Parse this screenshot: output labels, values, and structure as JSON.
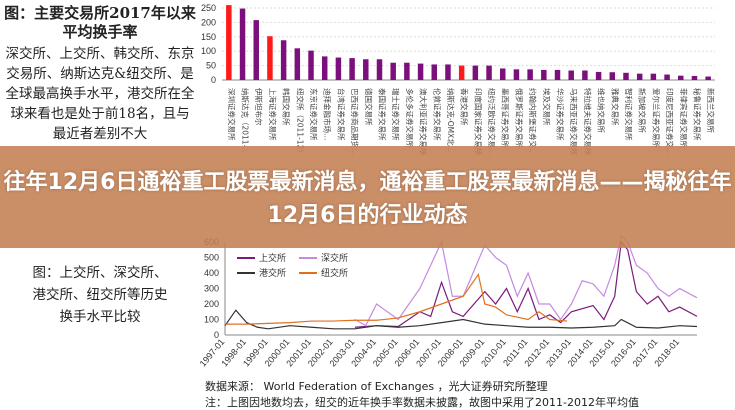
{
  "left_panel": {
    "title1": "图：主要交易所2017年以来平均换手率",
    "body1": "深交所、上交所、韩交所、东京交易所、纳斯达克&纽交所、是全球最高换手水平，港交所在全球来看也是处于前18名，且与最近者差别不大",
    "title2": "图：上交所、深交所、港交所、纽交所等历史换手水平比较"
  },
  "headline": "往年12月6日通裕重工股票最新消息，通裕重工股票最新消息——揭秘往年12月6日的行业动态",
  "source": "数据来源： World Federation of Exchanges ，光大证券研究所整理",
  "note": "注：上图因地数均去，纽交的近年换手率数据未披露，故图中采用了2011-2012年平均值",
  "colors": {
    "bar": "#7b0f7b",
    "highlight": "#ff1a1a",
    "overlay": "#c48052",
    "sse": "#7b1a7b",
    "szse": "#c58ae0",
    "hkex": "#333333",
    "nyse": "#e07020"
  },
  "chart_data": [
    {
      "type": "bar",
      "ylim": [
        0,
        300
      ],
      "yticks": [
        0,
        50,
        100,
        150,
        200,
        250
      ],
      "grid": true,
      "categories": [
        "深圳证券交易所",
        "纳斯达克（2011-…",
        "伊斯坦布尔",
        "上海证券交易所",
        "韩国交易所",
        "纽交所（2011-12）",
        "东京证券交易所",
        "迪拜金融市场…",
        "台湾证券交易所",
        "巴西证券商品期货…",
        "德国交易所",
        "泰国证券交易所",
        "瑞士证券交易所",
        "多伦多证券交易所",
        "澳大利亚证券交易所",
        "伦敦证券交易所",
        "纳斯达克-OMX北…",
        "香港交易所",
        "印度国家证券交易所",
        "纽约泛欧证券交易…",
        "墨西哥证券交易所",
        "俄罗斯证券交易所",
        "约翰内斯堡证券交…",
        "埃及交易所",
        "华沙证券交易所",
        "马来西亚证券交易所",
        "特拉维夫证券交易所",
        "维也纳交易所",
        "雅典交易所",
        "智利证券交易所",
        "新加坡交易所",
        "爱尔兰证券交易所",
        "印度尼西亚证券交…",
        "菲律宾证券交易所",
        "秘鲁证券交易所",
        "新西兰交易所"
      ],
      "values": [
        260,
        248,
        208,
        152,
        138,
        110,
        102,
        82,
        78,
        76,
        72,
        72,
        60,
        60,
        57,
        54,
        54,
        50,
        50,
        50,
        40,
        37,
        37,
        35,
        35,
        33,
        33,
        28,
        27,
        25,
        22,
        22,
        19,
        15,
        14,
        12
      ],
      "highlighted": [
        0,
        3,
        17
      ]
    },
    {
      "type": "line",
      "ylim": [
        0,
        600
      ],
      "yticks": [
        0,
        100,
        200,
        300,
        400,
        500,
        600
      ],
      "xticks": [
        "1997-01",
        "1998-01",
        "1999-01",
        "2000-01",
        "2001-01",
        "2002-01",
        "2003-01",
        "2004-01",
        "2005-01",
        "2006-01",
        "2007-01",
        "2008-01",
        "2009-01",
        "2010-01",
        "2011-01",
        "2012-01",
        "2013-01",
        "2014-01",
        "2015-01",
        "2016-01",
        "2017-01",
        "2018-01"
      ],
      "legend": "top-left",
      "series": [
        {
          "name": "上交所",
          "color": "#7b1a7b",
          "points": [
            [
              2003,
              50
            ],
            [
              2004,
              60
            ],
            [
              2005,
              55
            ],
            [
              2006,
              150
            ],
            [
              2006.5,
              120
            ],
            [
              2007,
              340
            ],
            [
              2007.5,
              150
            ],
            [
              2008,
              120
            ],
            [
              2009,
              280
            ],
            [
              2009.5,
              200
            ],
            [
              2010,
              300
            ],
            [
              2010.5,
              150
            ],
            [
              2011,
              300
            ],
            [
              2011.5,
              100
            ],
            [
              2012,
              130
            ],
            [
              2012.5,
              80
            ],
            [
              2013,
              150
            ],
            [
              2014,
              190
            ],
            [
              2014.5,
              100
            ],
            [
              2015,
              250
            ],
            [
              2015.3,
              600
            ],
            [
              2015.6,
              550
            ],
            [
              2016,
              280
            ],
            [
              2016.5,
              200
            ],
            [
              2017,
              250
            ],
            [
              2017.5,
              150
            ],
            [
              2018,
              180
            ],
            [
              2018.8,
              120
            ]
          ]
        },
        {
          "name": "深交所",
          "color": "#c58ae0",
          "points": [
            [
              2003,
              100
            ],
            [
              2003.5,
              60
            ],
            [
              2004,
              200
            ],
            [
              2005,
              100
            ],
            [
              2006,
              300
            ],
            [
              2007,
              600
            ],
            [
              2007.5,
              250
            ],
            [
              2008,
              250
            ],
            [
              2009,
              580
            ],
            [
              2009.5,
              500
            ],
            [
              2010,
              450
            ],
            [
              2010.5,
              250
            ],
            [
              2011,
              400
            ],
            [
              2011.5,
              200
            ],
            [
              2012,
              200
            ],
            [
              2012.5,
              100
            ],
            [
              2013,
              200
            ],
            [
              2013.5,
              350
            ],
            [
              2014,
              330
            ],
            [
              2014.5,
              250
            ],
            [
              2015,
              450
            ],
            [
              2015.3,
              650
            ],
            [
              2015.6,
              600
            ],
            [
              2016,
              450
            ],
            [
              2016.5,
              400
            ],
            [
              2017,
              300
            ],
            [
              2017.5,
              250
            ],
            [
              2018,
              300
            ],
            [
              2018.8,
              240
            ]
          ]
        },
        {
          "name": "港交所",
          "color": "#333333",
          "points": [
            [
              1997,
              60
            ],
            [
              1997.5,
              160
            ],
            [
              1998,
              80
            ],
            [
              1998.5,
              50
            ],
            [
              1999,
              40
            ],
            [
              2000,
              60
            ],
            [
              2001,
              50
            ],
            [
              2002,
              40
            ],
            [
              2003,
              40
            ],
            [
              2004,
              60
            ],
            [
              2005,
              50
            ],
            [
              2006,
              60
            ],
            [
              2007,
              80
            ],
            [
              2008,
              100
            ],
            [
              2009,
              70
            ],
            [
              2010,
              60
            ],
            [
              2011,
              50
            ],
            [
              2012,
              50
            ],
            [
              2013,
              45
            ],
            [
              2014,
              50
            ],
            [
              2015,
              60
            ],
            [
              2015.3,
              100
            ],
            [
              2016,
              50
            ],
            [
              2017,
              45
            ],
            [
              2018,
              60
            ],
            [
              2018.8,
              55
            ]
          ]
        },
        {
          "name": "纽交所",
          "color": "#e07020",
          "points": [
            [
              1997,
              70
            ],
            [
              1998,
              70
            ],
            [
              1999,
              75
            ],
            [
              2000,
              80
            ],
            [
              2001,
              90
            ],
            [
              2002,
              90
            ],
            [
              2003,
              95
            ],
            [
              2004,
              95
            ],
            [
              2005,
              110
            ],
            [
              2006,
              150
            ],
            [
              2007,
              200
            ],
            [
              2008,
              250
            ],
            [
              2008.7,
              390
            ],
            [
              2009,
              200
            ],
            [
              2009.5,
              180
            ],
            [
              2010,
              130
            ],
            [
              2011,
              100
            ],
            [
              2011.5,
              150
            ],
            [
              2012,
              100
            ],
            [
              2012.8,
              90
            ]
          ]
        }
      ]
    }
  ]
}
